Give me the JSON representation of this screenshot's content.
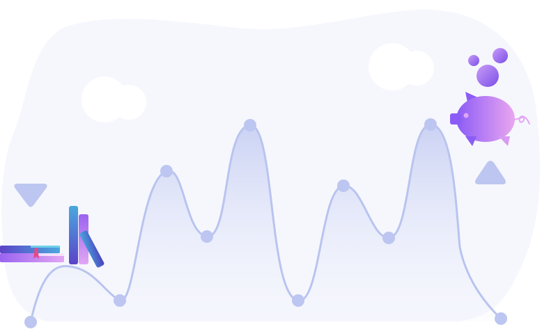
{
  "colors": {
    "background": "#ffffff",
    "blob": "#f6f7fd",
    "curve": "#b9c4ef",
    "point": "#bcc6f0",
    "accent_purple": "#8b5cf6",
    "accent_pink": "#e6a3f2",
    "accent_blue": "#4aa3df"
  },
  "icons": {
    "left": [
      "stacked-books-icon",
      "down-triangle-icon"
    ],
    "right": [
      "piggy-bank-icon",
      "coin-bubbles-icon",
      "up-triangle-icon"
    ]
  }
}
